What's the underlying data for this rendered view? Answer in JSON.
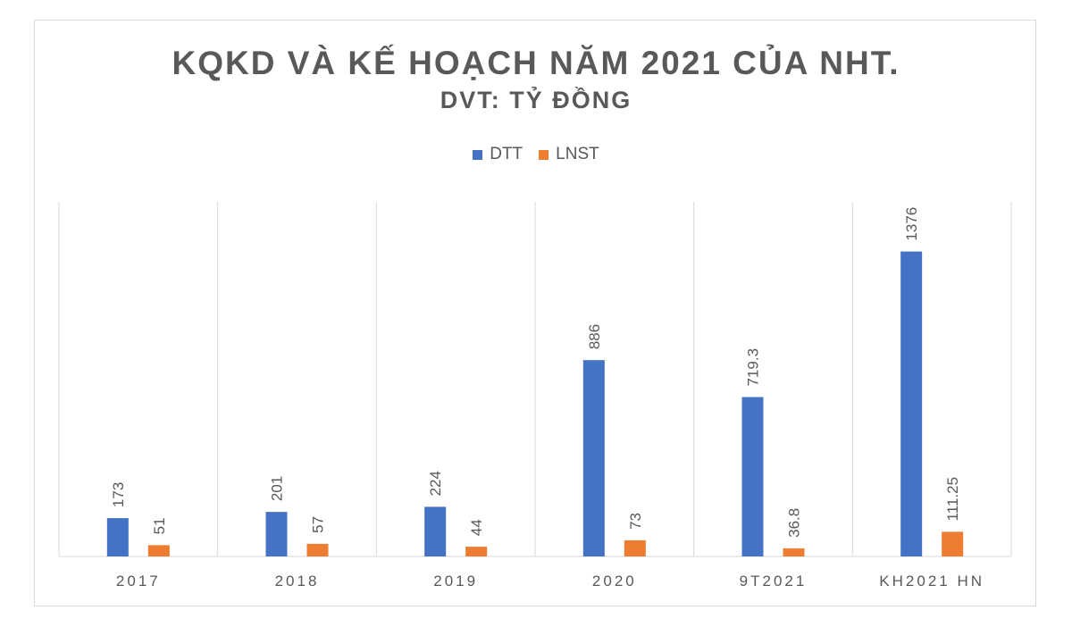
{
  "colors": {
    "DTT": "#4472c4",
    "LNST": "#ed7d31",
    "grid": "#d9d9d9",
    "text": "#595959"
  },
  "legend": {
    "position": "top"
  },
  "chart_data": {
    "type": "bar",
    "title": "KQKD VÀ KẾ HOẠCH NĂM 2021 CỦA NHT.",
    "subtitle": "DVT: TỶ ĐỒNG",
    "categories": [
      "2017",
      "2018",
      "2019",
      "2020",
      "9T2021",
      "KH2021 HN"
    ],
    "series": [
      {
        "name": "DTT",
        "values": [
          173,
          201,
          224,
          886,
          719.3,
          1376
        ],
        "labels": [
          "173",
          "201",
          "224",
          "886",
          "719.3",
          "1376"
        ]
      },
      {
        "name": "LNST",
        "values": [
          51,
          57,
          44,
          73,
          36.8,
          111.25
        ],
        "labels": [
          "51",
          "57",
          "44",
          "73",
          "36.8",
          "111.25"
        ]
      }
    ],
    "ylim": [
      0,
      1600
    ],
    "grid": "vertical category separators",
    "data_labels": "rotated, above bars"
  }
}
